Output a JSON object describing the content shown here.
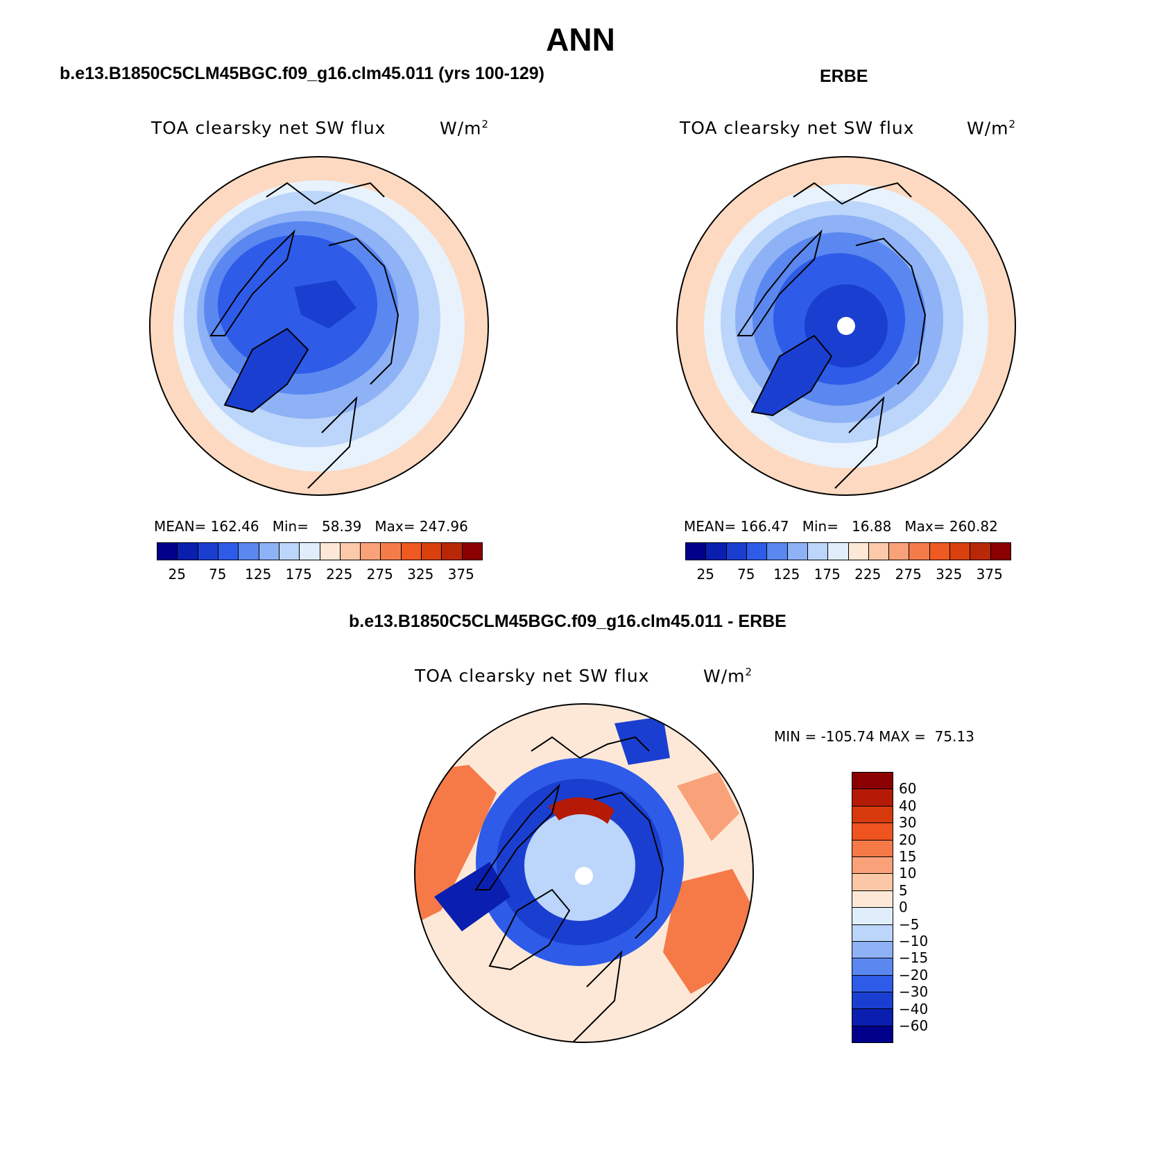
{
  "figure": {
    "title": "ANN"
  },
  "panels": {
    "model": {
      "title": "b.e13.B1850C5CLM45BGC.f09_g16.clm45.011 (yrs 100-129)",
      "var_name": "TOA clearsky net SW flux",
      "units": "W/m",
      "units_sup": "2",
      "mean_label": "MEAN=",
      "mean": "162.46",
      "min_label": "Min=",
      "min": "58.39",
      "max_label": "Max=",
      "max": "247.96"
    },
    "obs": {
      "title": "ERBE",
      "var_name": "TOA clearsky net SW flux",
      "units": "W/m",
      "units_sup": "2",
      "mean_label": "MEAN=",
      "mean": "166.47",
      "min_label": "Min=",
      "min": "16.88",
      "max_label": "Max=",
      "max": "260.82"
    },
    "diff": {
      "title": "b.e13.B1850C5CLM45BGC.f09_g16.clm45.011 - ERBE",
      "var_name": "TOA clearsky net SW flux",
      "units": "W/m",
      "units_sup": "2",
      "min_label": "MIN =",
      "min": "-105.74",
      "max_label": "MAX =",
      "max": "75.13"
    }
  },
  "colorbars": {
    "abs": {
      "ticks": [
        "25",
        "75",
        "125",
        "175",
        "225",
        "275",
        "325",
        "375"
      ],
      "colors": [
        "#00008b",
        "#0a1fb0",
        "#1a3fd0",
        "#2e5ce8",
        "#5a88f0",
        "#8eb2f5",
        "#bcd5fa",
        "#e0eefc",
        "#fde8d8",
        "#fcc9aa",
        "#f9a27a",
        "#f47c4a",
        "#ee5a22",
        "#d9400e",
        "#b82808",
        "#8b0000"
      ]
    },
    "diff": {
      "labels": [
        "60",
        "40",
        "30",
        "20",
        "15",
        "10",
        "5",
        "0",
        "−5",
        "−10",
        "−15",
        "−20",
        "−30",
        "−40",
        "−60"
      ],
      "colors": [
        "#8b0000",
        "#b41a06",
        "#d63a0c",
        "#ef5420",
        "#f57a48",
        "#f9a27a",
        "#fcc7a6",
        "#fde8d8",
        "#e0eefc",
        "#bcd5fa",
        "#8eb2f5",
        "#5a88f0",
        "#2e5ce8",
        "#1a3fd0",
        "#0a1fb0",
        "#00008b"
      ]
    }
  }
}
